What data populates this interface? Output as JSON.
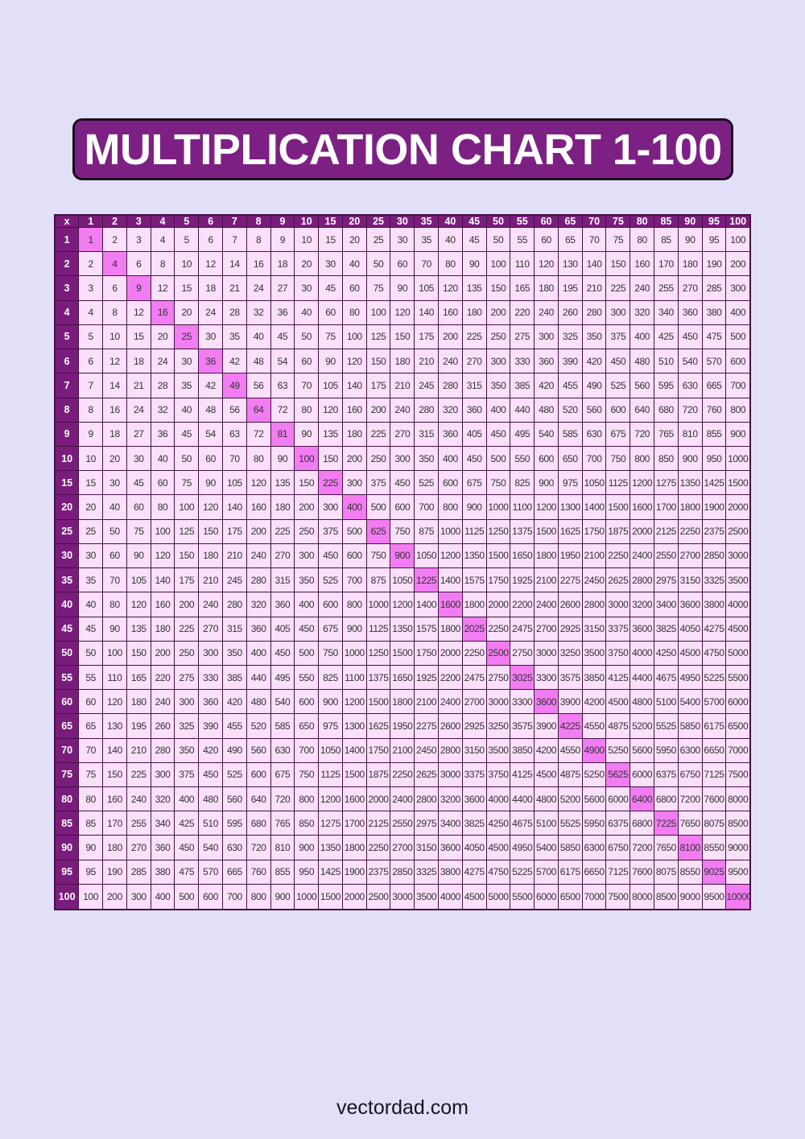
{
  "page": {
    "title": "MULTIPLICATION CHART 1-100",
    "footer": "vectordad.com"
  },
  "colors": {
    "page_background": "#E2DFF9",
    "title_fill": "#7D2083",
    "title_border": "#190D1C",
    "title_text": "#FFFFFF",
    "header_fill": "#7A1C7C",
    "header_text": "#FFFFFF",
    "cell_fill": "#FBE0FB",
    "diagonal_fill": "#F27CF2",
    "cell_border": "#451245",
    "cell_text": "#333333",
    "footer_text": "#16161F"
  },
  "table": {
    "corner_label": "x",
    "column_headers": [
      1,
      2,
      3,
      4,
      5,
      6,
      7,
      8,
      9,
      10,
      15,
      20,
      25,
      30,
      35,
      40,
      45,
      50,
      55,
      60,
      65,
      70,
      75,
      80,
      85,
      90,
      95,
      100
    ],
    "row_headers": [
      1,
      2,
      3,
      4,
      5,
      6,
      7,
      8,
      9,
      10,
      15,
      20,
      25,
      30,
      35,
      40,
      45,
      50,
      55,
      60,
      65,
      70,
      75,
      80,
      85,
      90,
      95,
      100
    ],
    "rows": [
      [
        1,
        2,
        3,
        4,
        5,
        6,
        7,
        8,
        9,
        10,
        15,
        20,
        25,
        30,
        35,
        40,
        45,
        50,
        55,
        60,
        65,
        70,
        75,
        80,
        85,
        90,
        95,
        100
      ],
      [
        2,
        4,
        6,
        8,
        10,
        12,
        14,
        16,
        18,
        20,
        30,
        40,
        50,
        60,
        70,
        80,
        90,
        100,
        110,
        120,
        130,
        140,
        150,
        160,
        170,
        180,
        190,
        200
      ],
      [
        3,
        6,
        9,
        12,
        15,
        18,
        21,
        24,
        27,
        30,
        45,
        60,
        75,
        90,
        105,
        120,
        135,
        150,
        165,
        180,
        195,
        210,
        225,
        240,
        255,
        270,
        285,
        300
      ],
      [
        4,
        8,
        12,
        16,
        20,
        24,
        28,
        32,
        36,
        40,
        60,
        80,
        100,
        120,
        140,
        160,
        180,
        200,
        220,
        240,
        260,
        280,
        300,
        320,
        340,
        360,
        380,
        400
      ],
      [
        5,
        10,
        15,
        20,
        25,
        30,
        35,
        40,
        45,
        50,
        75,
        100,
        125,
        150,
        175,
        200,
        225,
        250,
        275,
        300,
        325,
        350,
        375,
        400,
        425,
        450,
        475,
        500
      ],
      [
        6,
        12,
        18,
        24,
        30,
        36,
        42,
        48,
        54,
        60,
        90,
        120,
        150,
        180,
        210,
        240,
        270,
        300,
        330,
        360,
        390,
        420,
        450,
        480,
        510,
        540,
        570,
        600
      ],
      [
        7,
        14,
        21,
        28,
        35,
        42,
        49,
        56,
        63,
        70,
        105,
        140,
        175,
        210,
        245,
        280,
        315,
        350,
        385,
        420,
        455,
        490,
        525,
        560,
        595,
        630,
        665,
        700
      ],
      [
        8,
        16,
        24,
        32,
        40,
        48,
        56,
        64,
        72,
        80,
        120,
        160,
        200,
        240,
        280,
        320,
        360,
        400,
        440,
        480,
        520,
        560,
        600,
        640,
        680,
        720,
        760,
        800
      ],
      [
        9,
        18,
        27,
        36,
        45,
        54,
        63,
        72,
        81,
        90,
        135,
        180,
        225,
        270,
        315,
        360,
        405,
        450,
        495,
        540,
        585,
        630,
        675,
        720,
        765,
        810,
        855,
        900
      ],
      [
        10,
        20,
        30,
        40,
        50,
        60,
        70,
        80,
        90,
        100,
        150,
        200,
        250,
        300,
        350,
        400,
        450,
        500,
        550,
        600,
        650,
        700,
        750,
        800,
        850,
        900,
        950,
        1000
      ],
      [
        15,
        30,
        45,
        60,
        75,
        90,
        105,
        120,
        135,
        150,
        225,
        300,
        375,
        450,
        525,
        600,
        675,
        750,
        825,
        900,
        975,
        1050,
        1125,
        1200,
        1275,
        1350,
        1425,
        1500
      ],
      [
        20,
        40,
        60,
        80,
        100,
        120,
        140,
        160,
        180,
        200,
        300,
        400,
        500,
        600,
        700,
        800,
        900,
        1000,
        1100,
        1200,
        1300,
        1400,
        1500,
        1600,
        1700,
        1800,
        1900,
        2000
      ],
      [
        25,
        50,
        75,
        100,
        125,
        150,
        175,
        200,
        225,
        250,
        375,
        500,
        625,
        750,
        875,
        1000,
        1125,
        1250,
        1375,
        1500,
        1625,
        1750,
        1875,
        2000,
        2125,
        2250,
        2375,
        2500
      ],
      [
        30,
        60,
        90,
        120,
        150,
        180,
        210,
        240,
        270,
        300,
        450,
        600,
        750,
        900,
        1050,
        1200,
        1350,
        1500,
        1650,
        1800,
        1950,
        2100,
        2250,
        2400,
        2550,
        2700,
        2850,
        3000
      ],
      [
        35,
        70,
        105,
        140,
        175,
        210,
        245,
        280,
        315,
        350,
        525,
        700,
        875,
        1050,
        1225,
        1400,
        1575,
        1750,
        1925,
        2100,
        2275,
        2450,
        2625,
        2800,
        2975,
        3150,
        3325,
        3500
      ],
      [
        40,
        80,
        120,
        160,
        200,
        240,
        280,
        320,
        360,
        400,
        600,
        800,
        1000,
        1200,
        1400,
        1600,
        1800,
        2000,
        2200,
        2400,
        2600,
        2800,
        3000,
        3200,
        3400,
        3600,
        3800,
        4000
      ],
      [
        45,
        90,
        135,
        180,
        225,
        270,
        315,
        360,
        405,
        450,
        675,
        900,
        1125,
        1350,
        1575,
        1800,
        2025,
        2250,
        2475,
        2700,
        2925,
        3150,
        3375,
        3600,
        3825,
        4050,
        4275,
        4500
      ],
      [
        50,
        100,
        150,
        200,
        250,
        300,
        350,
        400,
        450,
        500,
        750,
        1000,
        1250,
        1500,
        1750,
        2000,
        2250,
        2500,
        2750,
        3000,
        3250,
        3500,
        3750,
        4000,
        4250,
        4500,
        4750,
        5000
      ],
      [
        55,
        110,
        165,
        220,
        275,
        330,
        385,
        440,
        495,
        550,
        825,
        1100,
        1375,
        1650,
        1925,
        2200,
        2475,
        2750,
        3025,
        3300,
        3575,
        3850,
        4125,
        4400,
        4675,
        4950,
        5225,
        5500
      ],
      [
        60,
        120,
        180,
        240,
        300,
        360,
        420,
        480,
        540,
        600,
        900,
        1200,
        1500,
        1800,
        2100,
        2400,
        2700,
        3000,
        3300,
        3600,
        3900,
        4200,
        4500,
        4800,
        5100,
        5400,
        5700,
        6000
      ],
      [
        65,
        130,
        195,
        260,
        325,
        390,
        455,
        520,
        585,
        650,
        975,
        1300,
        1625,
        1950,
        2275,
        2600,
        2925,
        3250,
        3575,
        3900,
        4225,
        4550,
        4875,
        5200,
        5525,
        5850,
        6175,
        6500
      ],
      [
        70,
        140,
        210,
        280,
        350,
        420,
        490,
        560,
        630,
        700,
        1050,
        1400,
        1750,
        2100,
        2450,
        2800,
        3150,
        3500,
        3850,
        4200,
        4550,
        4900,
        5250,
        5600,
        5950,
        6300,
        6650,
        7000
      ],
      [
        75,
        150,
        225,
        300,
        375,
        450,
        525,
        600,
        675,
        750,
        1125,
        1500,
        1875,
        2250,
        2625,
        3000,
        3375,
        3750,
        4125,
        4500,
        4875,
        5250,
        5625,
        6000,
        6375,
        6750,
        7125,
        7500
      ],
      [
        80,
        160,
        240,
        320,
        400,
        480,
        560,
        640,
        720,
        800,
        1200,
        1600,
        2000,
        2400,
        2800,
        3200,
        3600,
        4000,
        4400,
        4800,
        5200,
        5600,
        6000,
        6400,
        6800,
        7200,
        7600,
        8000
      ],
      [
        85,
        170,
        255,
        340,
        425,
        510,
        595,
        680,
        765,
        850,
        1275,
        1700,
        2125,
        2550,
        2975,
        3400,
        3825,
        4250,
        4675,
        5100,
        5525,
        5950,
        6375,
        6800,
        7225,
        7650,
        8075,
        8500
      ],
      [
        90,
        180,
        270,
        360,
        450,
        540,
        630,
        720,
        810,
        900,
        1350,
        1800,
        2250,
        2700,
        3150,
        3600,
        4050,
        4500,
        4950,
        5400,
        5850,
        6300,
        6750,
        7200,
        7650,
        8100,
        8550,
        9000
      ],
      [
        95,
        190,
        285,
        380,
        475,
        570,
        665,
        760,
        855,
        950,
        1425,
        1900,
        2375,
        2850,
        3325,
        3800,
        4275,
        4750,
        5225,
        5700,
        6175,
        6650,
        7125,
        7600,
        8075,
        8550,
        9025,
        9500
      ],
      [
        100,
        200,
        300,
        400,
        500,
        600,
        700,
        800,
        900,
        1000,
        1500,
        2000,
        2500,
        3000,
        3500,
        4000,
        4500,
        5000,
        5500,
        6000,
        6500,
        7000,
        7500,
        8000,
        8500,
        9000,
        9500,
        10000
      ]
    ]
  }
}
